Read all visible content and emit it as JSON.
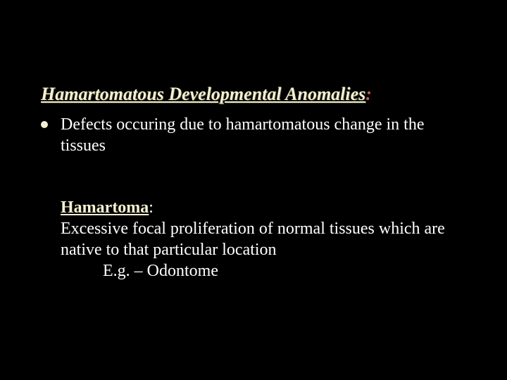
{
  "colors": {
    "background": "#000000",
    "title_text": "#f5f0d0",
    "title_shadow": "#3a3a2a",
    "colon": "#c05a5a",
    "body_text": "#ffffff",
    "bullet": "#f5f0d0",
    "def_term": "#f5f0d0"
  },
  "typography": {
    "family": "Times New Roman",
    "title_size_pt": 26,
    "body_size_pt": 24,
    "title_italic": true,
    "title_bold": true,
    "title_underline": true,
    "def_term_bold": true,
    "def_term_underline": true
  },
  "title": {
    "text": "Hamartomatous Developmental Anomalies",
    "trailing": ":"
  },
  "bullet": {
    "text": "Defects occuring due to hamartomatous change in the tissues"
  },
  "definition": {
    "term": "Hamartoma",
    "term_trailing": ":",
    "body": "Excessive focal proliferation of normal tissues which are native to that particular location",
    "example": "E.g. – Odontome"
  }
}
